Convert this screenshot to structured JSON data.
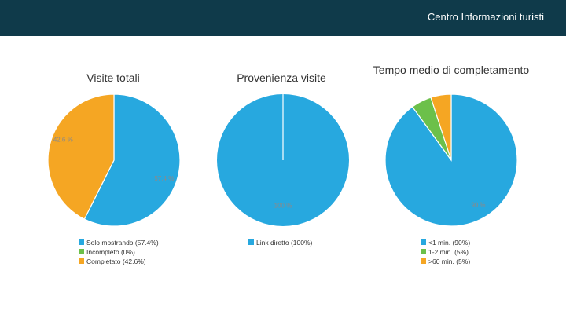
{
  "header": {
    "title": "Centro Informazioni turisti"
  },
  "colors": {
    "blue": "#27a8df",
    "green": "#6cc04a",
    "orange": "#f5a623",
    "header_bg": "#0f3a4a"
  },
  "chart_data": [
    {
      "type": "pie",
      "title": "Visite totali",
      "slices": [
        {
          "label": "Solo mostrando (57.4%)",
          "value": 57.4,
          "color": "#27a8df",
          "data_label": "57.4 %"
        },
        {
          "label": "Incompleto (0%)",
          "value": 0,
          "color": "#6cc04a",
          "data_label": ""
        },
        {
          "label": "Completato (42.6%)",
          "value": 42.6,
          "color": "#f5a623",
          "data_label": "42.6 %"
        }
      ]
    },
    {
      "type": "pie",
      "title": "Provenienza visite",
      "slices": [
        {
          "label": "Link diretto (100%)",
          "value": 100,
          "color": "#27a8df",
          "data_label": "100 %"
        }
      ]
    },
    {
      "type": "pie",
      "title": "Tempo medio di completamento",
      "slices": [
        {
          "label": "<1 min. (90%)",
          "value": 90,
          "color": "#27a8df",
          "data_label": "90 %"
        },
        {
          "label": "1-2 min. (5%)",
          "value": 5,
          "color": "#6cc04a",
          "data_label": ""
        },
        {
          "label": ">60 min. (5%)",
          "value": 5,
          "color": "#f5a623",
          "data_label": ""
        }
      ]
    }
  ]
}
